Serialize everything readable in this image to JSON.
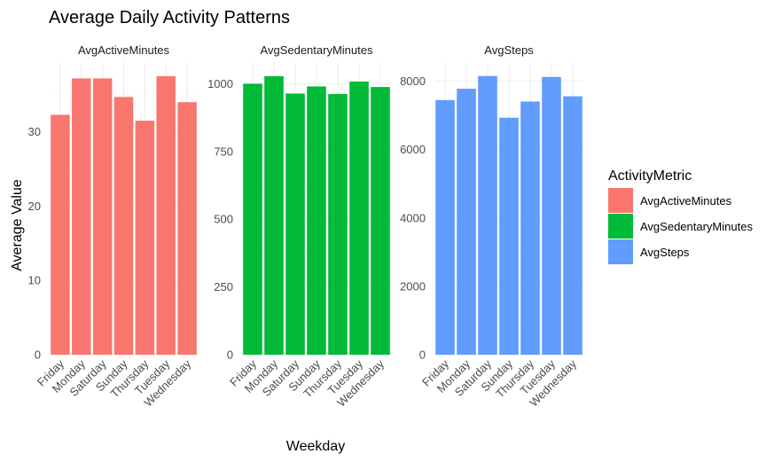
{
  "title": "Average Daily Activity Patterns",
  "xlabel": "Weekday",
  "ylabel": "Average Value",
  "legend": {
    "title": "ActivityMetric",
    "items": [
      {
        "label": "AvgActiveMinutes",
        "color": "#F8766D"
      },
      {
        "label": "AvgSedentaryMinutes",
        "color": "#00BA38"
      },
      {
        "label": "AvgSteps",
        "color": "#619CFF"
      }
    ]
  },
  "chart_data": [
    {
      "type": "bar",
      "panel_title": "AvgActiveMinutes",
      "color": "#F8766D",
      "categories": [
        "Friday",
        "Monday",
        "Saturday",
        "Sunday",
        "Thursday",
        "Tuesday",
        "Wednesday"
      ],
      "values": [
        32.3,
        37.2,
        37.2,
        34.7,
        31.5,
        37.5,
        34.0
      ],
      "yticks": [
        0,
        10,
        20,
        30
      ],
      "ylim": [
        0,
        39.4
      ]
    },
    {
      "type": "bar",
      "panel_title": "AvgSedentaryMinutes",
      "color": "#00BA38",
      "categories": [
        "Friday",
        "Monday",
        "Saturday",
        "Sunday",
        "Thursday",
        "Tuesday",
        "Wednesday"
      ],
      "values": [
        1000,
        1028,
        964,
        990,
        962,
        1008,
        988
      ],
      "yticks": [
        0,
        250,
        500,
        750,
        1000
      ],
      "ylim": [
        0,
        1080
      ]
    },
    {
      "type": "bar",
      "panel_title": "AvgSteps",
      "color": "#619CFF",
      "categories": [
        "Friday",
        "Monday",
        "Saturday",
        "Sunday",
        "Thursday",
        "Tuesday",
        "Wednesday"
      ],
      "values": [
        7448,
        7780,
        8153,
        6933,
        7406,
        8125,
        7559
      ],
      "yticks": [
        0,
        2000,
        4000,
        6000,
        8000
      ],
      "ylim": [
        0,
        8560
      ]
    }
  ]
}
